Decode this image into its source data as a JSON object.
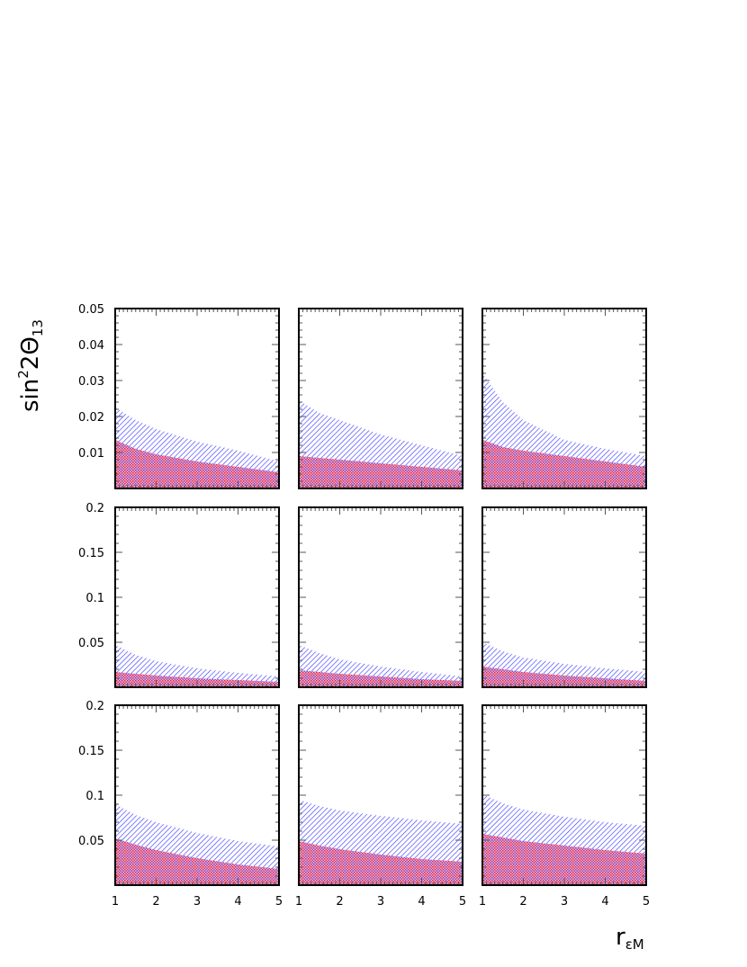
{
  "chart_data": {
    "type": "area",
    "layout": "3x3 grid of panels",
    "ylabel": "sin²2Θ₁₃",
    "ylabel_parts": {
      "base": "sin",
      "sup": "2",
      "mid": "2Θ",
      "sub": "13"
    },
    "xlabel": "r_εM",
    "xlabel_parts": {
      "base": "r",
      "sub": "εM"
    },
    "xlim": [
      1,
      5
    ],
    "x_ticks": [
      "1",
      "2",
      "3",
      "4",
      "5"
    ],
    "x_tick_values": [
      1,
      2,
      3,
      4,
      5
    ],
    "rows": [
      {
        "ylim": [
          0,
          0.05
        ],
        "y_ticks": [
          "0.01",
          "0.02",
          "0.03",
          "0.04",
          "0.05"
        ],
        "y_tick_values": [
          0.01,
          0.02,
          0.03,
          0.04,
          0.05
        ],
        "y_major": 0.01,
        "y_minor": 0.002
      },
      {
        "ylim": [
          0,
          0.2
        ],
        "y_ticks": [
          "0.05",
          "0.1",
          "0.15",
          "0.2"
        ],
        "y_tick_values": [
          0.05,
          0.1,
          0.15,
          0.2
        ],
        "y_major": 0.05,
        "y_minor": 0.01
      },
      {
        "ylim": [
          0,
          0.2
        ],
        "y_ticks": [
          "0.05",
          "0.1",
          "0.15",
          "0.2"
        ],
        "y_tick_values": [
          0.05,
          0.1,
          0.15,
          0.2
        ],
        "y_major": 0.05,
        "y_minor": 0.01
      }
    ],
    "x": [
      1,
      1.5,
      2,
      3,
      4,
      5
    ],
    "colors": {
      "blue_band": "#0000ff",
      "red_band": "#ff0000"
    },
    "fill_styles": {
      "blue_band": "diagonal hatch",
      "red_band": "cross hatch"
    },
    "panels": [
      {
        "row": 0,
        "col": 0,
        "blue_upper": [
          0.0225,
          0.019,
          0.0165,
          0.013,
          0.0105,
          0.0075
        ],
        "red_upper": [
          0.0135,
          0.011,
          0.0095,
          0.0075,
          0.006,
          0.0045
        ]
      },
      {
        "row": 0,
        "col": 1,
        "blue_upper": [
          0.0245,
          0.021,
          0.019,
          0.015,
          0.012,
          0.009
        ],
        "red_upper": [
          0.009,
          0.0085,
          0.008,
          0.007,
          0.006,
          0.005
        ]
      },
      {
        "row": 0,
        "col": 2,
        "blue_upper": [
          0.032,
          0.024,
          0.019,
          0.0135,
          0.011,
          0.009
        ],
        "red_upper": [
          0.0135,
          0.0115,
          0.0105,
          0.009,
          0.0075,
          0.006
        ]
      },
      {
        "row": 1,
        "col": 0,
        "blue_upper": [
          0.047,
          0.036,
          0.029,
          0.021,
          0.016,
          0.012
        ],
        "red_upper": [
          0.017,
          0.015,
          0.013,
          0.01,
          0.008,
          0.006
        ]
      },
      {
        "row": 1,
        "col": 1,
        "blue_upper": [
          0.047,
          0.038,
          0.031,
          0.023,
          0.017,
          0.012
        ],
        "red_upper": [
          0.019,
          0.017,
          0.015,
          0.012,
          0.009,
          0.007
        ]
      },
      {
        "row": 1,
        "col": 2,
        "blue_upper": [
          0.05,
          0.04,
          0.033,
          0.026,
          0.021,
          0.017
        ],
        "red_upper": [
          0.023,
          0.02,
          0.017,
          0.013,
          0.01,
          0.007
        ]
      },
      {
        "row": 2,
        "col": 0,
        "blue_upper": [
          0.09,
          0.078,
          0.07,
          0.058,
          0.049,
          0.043
        ],
        "red_upper": [
          0.052,
          0.045,
          0.039,
          0.03,
          0.023,
          0.018
        ]
      },
      {
        "row": 2,
        "col": 1,
        "blue_upper": [
          0.095,
          0.088,
          0.083,
          0.077,
          0.072,
          0.068
        ],
        "red_upper": [
          0.049,
          0.044,
          0.04,
          0.034,
          0.029,
          0.026
        ]
      },
      {
        "row": 2,
        "col": 2,
        "blue_upper": [
          0.101,
          0.091,
          0.084,
          0.076,
          0.07,
          0.066
        ],
        "red_upper": [
          0.057,
          0.053,
          0.049,
          0.044,
          0.039,
          0.035
        ]
      }
    ]
  }
}
